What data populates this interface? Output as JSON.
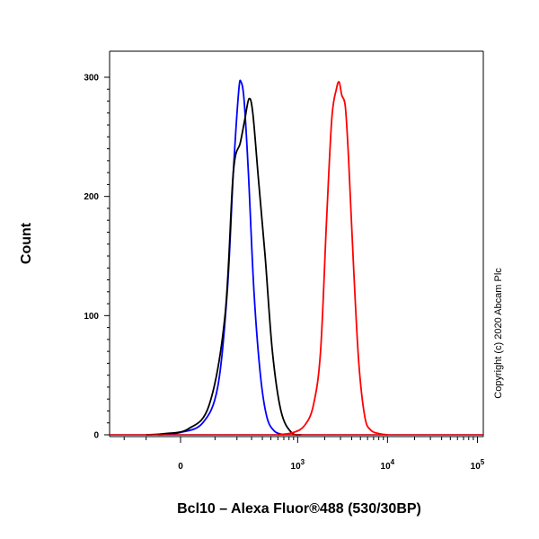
{
  "chart_data": {
    "type": "line",
    "xlabel": "Bcl10 – Alexa Fluor®488 (530/30BP)",
    "ylabel": "Count",
    "x_scale": "biexponential",
    "ylim": [
      0,
      300
    ],
    "y_ticks": [
      0,
      100,
      200,
      300
    ],
    "x_ticks": [
      {
        "value": 0,
        "label": "0"
      },
      {
        "value": 1000,
        "base": "10",
        "exp": "3"
      },
      {
        "value": 10000,
        "base": "10",
        "exp": "4"
      },
      {
        "value": 100000,
        "base": "10",
        "exp": "5"
      }
    ],
    "grid": false,
    "legend": "none",
    "series": [
      {
        "color": "#0000ff",
        "points": [
          [
            -60,
            0
          ],
          [
            0,
            2
          ],
          [
            60,
            10
          ],
          [
            110,
            40
          ],
          [
            150,
            120
          ],
          [
            180,
            220
          ],
          [
            210,
            288
          ],
          [
            225,
            296
          ],
          [
            245,
            280
          ],
          [
            275,
            220
          ],
          [
            320,
            120
          ],
          [
            380,
            50
          ],
          [
            450,
            15
          ],
          [
            550,
            3
          ],
          [
            700,
            0
          ]
        ]
      },
      {
        "color": "#000000",
        "points": [
          [
            -100,
            0
          ],
          [
            -40,
            1
          ],
          [
            20,
            5
          ],
          [
            80,
            25
          ],
          [
            140,
            100
          ],
          [
            180,
            220
          ],
          [
            220,
            245
          ],
          [
            250,
            265
          ],
          [
            280,
            282
          ],
          [
            310,
            270
          ],
          [
            360,
            215
          ],
          [
            430,
            150
          ],
          [
            520,
            70
          ],
          [
            650,
            20
          ],
          [
            850,
            2
          ],
          [
            1100,
            0
          ]
        ]
      },
      {
        "color": "#ff0000",
        "points": [
          [
            600,
            0
          ],
          [
            900,
            2
          ],
          [
            1200,
            8
          ],
          [
            1500,
            25
          ],
          [
            1800,
            70
          ],
          [
            2100,
            180
          ],
          [
            2400,
            265
          ],
          [
            2700,
            290
          ],
          [
            2900,
            296
          ],
          [
            3100,
            285
          ],
          [
            3400,
            275
          ],
          [
            3700,
            230
          ],
          [
            4200,
            140
          ],
          [
            4800,
            60
          ],
          [
            5600,
            15
          ],
          [
            6500,
            4
          ],
          [
            8000,
            1
          ],
          [
            10000,
            0
          ]
        ]
      }
    ]
  },
  "copyright": "Copyright (c) 2020 Abcam Plc"
}
